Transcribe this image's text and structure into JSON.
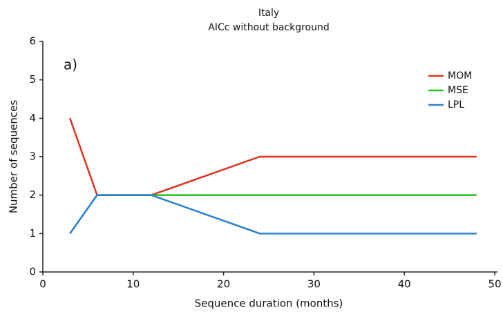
{
  "chart_data": {
    "type": "line",
    "title": "Italy",
    "subtitle": "AICc without background",
    "annotation": "a)",
    "x_label": "Sequence duration (months)",
    "y_label": "Number of sequences",
    "x": [
      3,
      6,
      12,
      24,
      48
    ],
    "series": [
      {
        "name": "MOM",
        "color": "#e0321e",
        "values": [
          4,
          2,
          2,
          3,
          3
        ]
      },
      {
        "name": "MSE",
        "color": "#22c41c",
        "values": [
          1,
          2,
          2,
          2,
          2
        ]
      },
      {
        "name": "LPL",
        "color": "#2a7fd4",
        "values": [
          1,
          2,
          2,
          1,
          1
        ]
      }
    ],
    "xlim": [
      0,
      50
    ],
    "xticks": [
      0,
      10,
      20,
      30,
      40,
      50
    ],
    "ylim": [
      0,
      6
    ],
    "yticks": [
      0,
      1,
      2,
      3,
      4,
      5,
      6
    ],
    "grid": false,
    "legend": "top-right"
  }
}
